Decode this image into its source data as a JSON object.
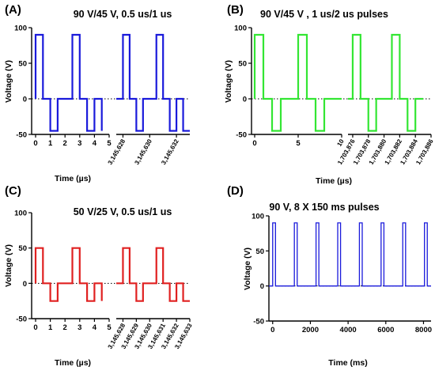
{
  "chart_data": [
    {
      "panel": "(A)",
      "type": "line",
      "title": "90 V/45 V, 0.5 us/1 us",
      "xlabel": "Time (µs)",
      "ylabel": "Voltage (V)",
      "ylim": [
        -50,
        100
      ],
      "yticks": [
        "100",
        "50",
        "0",
        "-50"
      ],
      "color": "#1a1adb",
      "segments": [
        {
          "xlim": [
            0,
            5
          ],
          "xticks": [
            "0",
            "1",
            "2",
            "3",
            "4",
            "5"
          ],
          "tick_rotated": false,
          "x": [
            0,
            0,
            0.5,
            0.5,
            1,
            1,
            1.5,
            1.5,
            2.5,
            2.5,
            3,
            3,
            3.5,
            3.5,
            4,
            4,
            4.5,
            4.5
          ],
          "y": [
            0,
            90,
            90,
            0,
            0,
            -45,
            -45,
            0,
            0,
            90,
            90,
            0,
            0,
            -45,
            -45,
            0,
            0,
            -45
          ]
        },
        {
          "xlim": [
            3145627.5,
            3145633
          ],
          "xticks": [
            "3,145,628",
            "3,145,630",
            "3,145,632"
          ],
          "xtick_values": [
            3145628,
            3145630,
            3145632
          ],
          "tick_rotated": true,
          "x": [
            3145627.5,
            3145628,
            3145628,
            3145628.5,
            3145628.5,
            3145629,
            3145629,
            3145629.5,
            3145629.5,
            3145630.5,
            3145630.5,
            3145631,
            3145631,
            3145631.5,
            3145631.5,
            3145632,
            3145632,
            3145632.5,
            3145632.5,
            3145633
          ],
          "y": [
            0,
            0,
            90,
            90,
            0,
            0,
            -45,
            -45,
            0,
            0,
            90,
            90,
            0,
            0,
            -45,
            -45,
            0,
            0,
            -45,
            -45
          ]
        }
      ]
    },
    {
      "panel": "(B)",
      "type": "line",
      "title": "90 V/45 V , 1 us/2 us pulses",
      "xlabel": "Time (µs)",
      "ylabel": "Voltage (V)",
      "ylim": [
        -50,
        100
      ],
      "yticks": [
        "100",
        "50",
        "0",
        "-50"
      ],
      "color": "#33e633",
      "segments": [
        {
          "xlim": [
            0,
            10
          ],
          "xticks": [
            "0",
            "5",
            "10"
          ],
          "xtick_values": [
            0,
            5,
            10
          ],
          "tick_rotated": false,
          "last_tick_rotated": true,
          "x": [
            0,
            0,
            1,
            1,
            2,
            2,
            3,
            3,
            5,
            5,
            6,
            6,
            7,
            7,
            8,
            8,
            9,
            10
          ],
          "y": [
            0,
            90,
            90,
            0,
            0,
            -45,
            -45,
            0,
            0,
            90,
            90,
            0,
            0,
            -45,
            -45,
            0,
            0,
            0
          ]
        },
        {
          "xlim": [
            1703875.4,
            1703886
          ],
          "xticks": [
            "1,703,876",
            "1,703,878",
            "1,703,880",
            "1,703,882",
            "1,703,884",
            "1,703,886"
          ],
          "xtick_values": [
            1703876,
            1703878,
            1703880,
            1703882,
            1703884,
            1703886
          ],
          "tick_rotated": true,
          "x": [
            1703875.4,
            1703876,
            1703876,
            1703877,
            1703877,
            1703878,
            1703878,
            1703879,
            1703879,
            1703881,
            1703881,
            1703882,
            1703882,
            1703883,
            1703883,
            1703884,
            1703884,
            1703885
          ],
          "y": [
            0,
            0,
            90,
            90,
            0,
            0,
            -45,
            -45,
            0,
            0,
            90,
            90,
            0,
            0,
            -45,
            -45,
            0,
            0
          ]
        }
      ]
    },
    {
      "panel": "(C)",
      "type": "line",
      "title": "50 V/25 V, 0.5 us/1 us",
      "xlabel": "Time (µs)",
      "ylabel": "Voltage (V)",
      "ylim": [
        -50,
        100
      ],
      "yticks": [
        "100",
        "50",
        "0",
        "-50"
      ],
      "color": "#e02020",
      "segments": [
        {
          "xlim": [
            0,
            5
          ],
          "xticks": [
            "0",
            "1",
            "2",
            "3",
            "4",
            "5"
          ],
          "tick_rotated": false,
          "x": [
            0,
            0,
            0.5,
            0.5,
            1,
            1,
            1.5,
            1.5,
            2.5,
            2.5,
            3,
            3,
            3.5,
            3.5,
            4,
            4,
            4.5,
            4.5
          ],
          "y": [
            0,
            50,
            50,
            0,
            0,
            -25,
            -25,
            0,
            0,
            50,
            50,
            0,
            0,
            -25,
            -25,
            0,
            0,
            -25
          ]
        },
        {
          "xlim": [
            3145627.5,
            3145633
          ],
          "xticks": [
            "3,145,628",
            "3,145,629",
            "3,145,630",
            "3,145,631",
            "3,145,632",
            "3,145,633"
          ],
          "xtick_values": [
            3145628,
            3145629,
            3145630,
            3145631,
            3145632,
            3145633
          ],
          "tick_rotated": true,
          "x": [
            3145627.5,
            3145628,
            3145628,
            3145628.5,
            3145628.5,
            3145629,
            3145629,
            3145629.5,
            3145629.5,
            3145630.5,
            3145630.5,
            3145631,
            3145631,
            3145631.5,
            3145631.5,
            3145632,
            3145632,
            3145632.5,
            3145632.5,
            3145633
          ],
          "y": [
            0,
            0,
            50,
            50,
            0,
            0,
            -25,
            -25,
            0,
            0,
            50,
            50,
            0,
            0,
            -25,
            -25,
            0,
            0,
            -25,
            -25
          ]
        }
      ]
    },
    {
      "panel": "(D)",
      "type": "line",
      "title": "90 V, 8 X 150 ms pulses",
      "xlabel": "Time (ms)",
      "ylabel": "Voltage (V)",
      "ylim": [
        -50,
        100
      ],
      "yticks": [
        "100",
        "50",
        "0",
        "-50"
      ],
      "color": "#1a1adb",
      "segments": [
        {
          "xlim": [
            -200,
            8400
          ],
          "xticks": [
            "0",
            "2000",
            "4000",
            "6000",
            "8000"
          ],
          "xtick_values": [
            0,
            2000,
            4000,
            6000,
            8000
          ],
          "tick_rotated": false,
          "pulse_starts": [
            0,
            1150,
            2300,
            3450,
            4600,
            5750,
            6900,
            8050
          ],
          "pulse_width": 150,
          "pulse_value": 90
        }
      ]
    }
  ]
}
